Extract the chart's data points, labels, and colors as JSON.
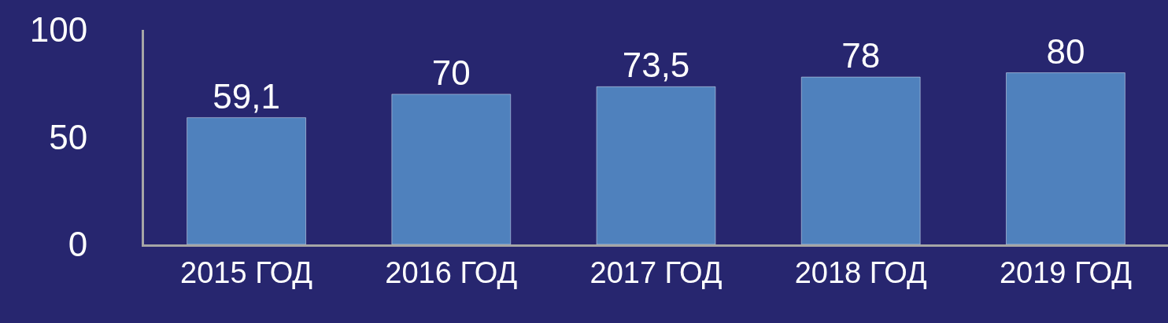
{
  "chart_data": {
    "type": "bar",
    "categories": [
      "2015 ГОД",
      "2016 ГОД",
      "2017 ГОД",
      "2018 ГОД",
      "2019 ГОД"
    ],
    "values": [
      59.1,
      70,
      73.5,
      78,
      80
    ],
    "value_labels": [
      "59,1",
      "70",
      "73,5",
      "78",
      "80"
    ],
    "color": "#4f81bd",
    "ylim": [
      0,
      100
    ],
    "yticks": [
      0,
      50,
      100
    ],
    "grid": false
  }
}
